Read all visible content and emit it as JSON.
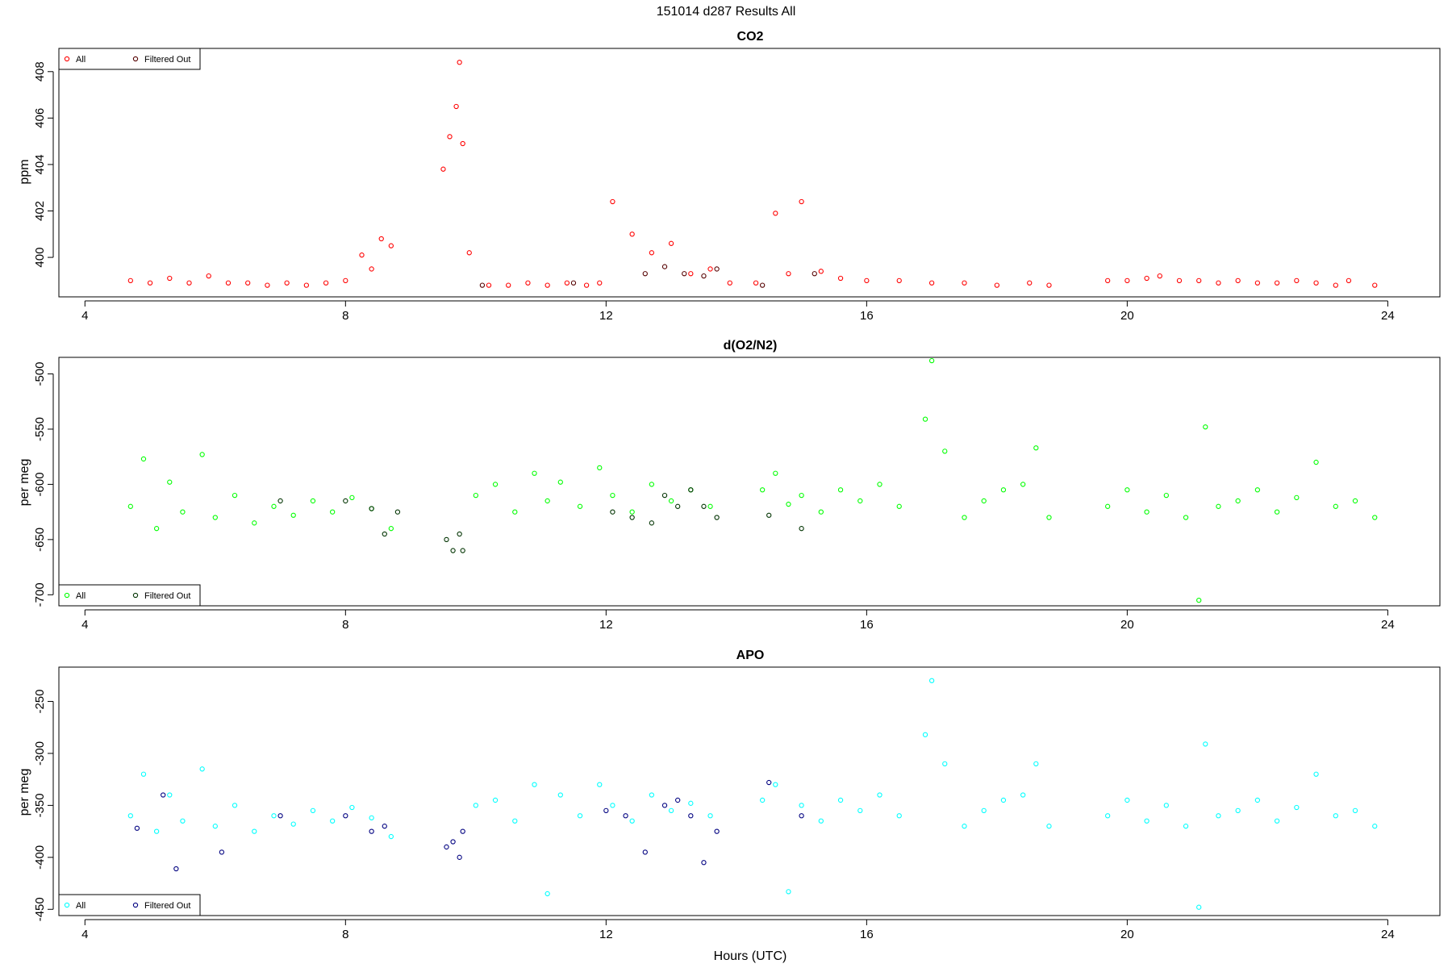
{
  "figure": {
    "title": "151014   d287   Results All",
    "xlabel": "Hours (UTC)"
  },
  "chart_data": [
    {
      "type": "scatter",
      "title": "CO2",
      "ylabel": "ppm",
      "xlim": [
        3.6,
        24.8
      ],
      "ylim": [
        398.3,
        409.0
      ],
      "xticks": [
        4,
        8,
        12,
        16,
        20,
        24
      ],
      "yticks": [
        400,
        402,
        404,
        406,
        408
      ],
      "legend_position": "top-left",
      "grid": false,
      "colors": {
        "all": "#ff0000",
        "filtered": "#550000"
      },
      "series": [
        {
          "name": "All",
          "x": [
            4.7,
            5.0,
            5.3,
            5.6,
            5.9,
            6.2,
            6.5,
            6.8,
            7.1,
            7.4,
            7.7,
            8.0,
            8.25,
            8.4,
            8.55,
            8.7,
            9.5,
            9.6,
            9.7,
            9.75,
            9.8,
            9.9,
            10.2,
            10.5,
            10.8,
            11.1,
            11.4,
            11.7,
            11.9,
            12.1,
            12.4,
            12.7,
            13.0,
            13.3,
            13.6,
            13.9,
            14.3,
            14.6,
            14.8,
            15.0,
            15.3,
            15.6,
            16.0,
            16.5,
            17.0,
            17.5,
            18.0,
            18.5,
            18.8,
            19.7,
            20.0,
            20.3,
            20.5,
            20.8,
            21.1,
            21.4,
            21.7,
            22.0,
            22.3,
            22.6,
            22.9,
            23.2,
            23.4,
            23.8
          ],
          "y": [
            399.0,
            398.9,
            399.1,
            398.9,
            399.2,
            398.9,
            398.9,
            398.8,
            398.9,
            398.8,
            398.9,
            399.0,
            400.1,
            399.5,
            400.8,
            400.5,
            403.8,
            405.2,
            406.5,
            408.4,
            404.9,
            400.2,
            398.8,
            398.8,
            398.9,
            398.8,
            398.9,
            398.8,
            398.9,
            402.4,
            401.0,
            400.2,
            400.6,
            399.3,
            399.5,
            398.9,
            398.9,
            401.9,
            399.3,
            402.4,
            399.4,
            399.1,
            399.0,
            399.0,
            398.9,
            398.9,
            398.8,
            398.9,
            398.8,
            399.0,
            399.0,
            399.1,
            399.2,
            399.0,
            399.0,
            398.9,
            399.0,
            398.9,
            398.9,
            399.0,
            398.9,
            398.8,
            399.0,
            398.8
          ]
        },
        {
          "name": "Filtered Out",
          "x": [
            10.1,
            11.5,
            12.6,
            12.9,
            13.2,
            13.5,
            13.7,
            14.4,
            15.2
          ],
          "y": [
            398.8,
            398.9,
            399.3,
            399.6,
            399.3,
            399.2,
            399.5,
            398.8,
            399.3
          ]
        }
      ]
    },
    {
      "type": "scatter",
      "title": "d(O2/N2)",
      "ylabel": "per meg",
      "xlim": [
        3.6,
        24.8
      ],
      "ylim": [
        -710,
        -485
      ],
      "xticks": [
        4,
        8,
        12,
        16,
        20,
        24
      ],
      "yticks": [
        -700,
        -650,
        -600,
        -550,
        -500
      ],
      "legend_position": "bottom-left",
      "grid": false,
      "colors": {
        "all": "#00ff00",
        "filtered": "#003300"
      },
      "series": [
        {
          "name": "All",
          "x": [
            4.7,
            4.9,
            5.1,
            5.3,
            5.5,
            5.8,
            6.0,
            6.3,
            6.6,
            6.9,
            7.2,
            7.5,
            7.8,
            8.1,
            8.4,
            8.7,
            10.0,
            10.3,
            10.6,
            10.9,
            11.1,
            11.3,
            11.6,
            11.9,
            12.1,
            12.4,
            12.7,
            13.0,
            13.3,
            13.6,
            14.4,
            14.6,
            14.8,
            15.0,
            15.3,
            15.6,
            15.9,
            16.2,
            16.5,
            16.9,
            17.0,
            17.2,
            17.5,
            17.8,
            18.1,
            18.4,
            18.6,
            18.8,
            19.7,
            20.0,
            20.3,
            20.6,
            20.9,
            21.1,
            21.2,
            21.4,
            21.7,
            22.0,
            22.3,
            22.6,
            22.9,
            23.2,
            23.5,
            23.8
          ],
          "y": [
            -620,
            -577,
            -640,
            -598,
            -625,
            -573,
            -630,
            -610,
            -635,
            -620,
            -628,
            -615,
            -625,
            -612,
            -622,
            -640,
            -610,
            -600,
            -625,
            -590,
            -615,
            -598,
            -620,
            -585,
            -610,
            -625,
            -600,
            -615,
            -605,
            -620,
            -605,
            -590,
            -618,
            -610,
            -625,
            -605,
            -615,
            -600,
            -620,
            -541,
            -488,
            -570,
            -630,
            -615,
            -605,
            -600,
            -567,
            -630,
            -620,
            -605,
            -625,
            -610,
            -630,
            -705,
            -548,
            -620,
            -615,
            -605,
            -625,
            -612,
            -580,
            -620,
            -615,
            -630
          ]
        },
        {
          "name": "Filtered Out",
          "x": [
            7.0,
            8.0,
            8.4,
            8.6,
            8.8,
            9.55,
            9.65,
            9.75,
            9.8,
            12.1,
            12.4,
            12.7,
            12.9,
            13.1,
            13.3,
            13.5,
            13.7,
            14.5,
            15.0
          ],
          "y": [
            -615,
            -615,
            -622,
            -645,
            -625,
            -650,
            -660,
            -645,
            -660,
            -625,
            -630,
            -635,
            -610,
            -620,
            -605,
            -620,
            -630,
            -628,
            -640
          ]
        }
      ]
    },
    {
      "type": "scatter",
      "title": "APO",
      "ylabel": "per meg",
      "xlim": [
        3.6,
        24.8
      ],
      "ylim": [
        -456,
        -217
      ],
      "xticks": [
        4,
        8,
        12,
        16,
        20,
        24
      ],
      "yticks": [
        -450,
        -400,
        -350,
        -300,
        -250
      ],
      "legend_position": "bottom-left",
      "grid": false,
      "colors": {
        "all": "#00ffff",
        "filtered": "#000080"
      },
      "series": [
        {
          "name": "All",
          "x": [
            4.7,
            4.9,
            5.1,
            5.3,
            5.5,
            5.8,
            6.0,
            6.3,
            6.6,
            6.9,
            7.2,
            7.5,
            7.8,
            8.1,
            8.4,
            8.7,
            10.0,
            10.3,
            10.6,
            10.9,
            11.1,
            11.3,
            11.6,
            11.9,
            12.1,
            12.4,
            12.7,
            13.0,
            13.3,
            13.6,
            14.4,
            14.6,
            14.8,
            15.0,
            15.3,
            15.6,
            15.9,
            16.2,
            16.5,
            16.9,
            17.0,
            17.2,
            17.5,
            17.8,
            18.1,
            18.4,
            18.6,
            18.8,
            19.7,
            20.0,
            20.3,
            20.6,
            20.9,
            21.1,
            21.2,
            21.4,
            21.7,
            22.0,
            22.3,
            22.6,
            22.9,
            23.2,
            23.5,
            23.8
          ],
          "y": [
            -360,
            -320,
            -375,
            -340,
            -365,
            -315,
            -370,
            -350,
            -375,
            -360,
            -368,
            -355,
            -365,
            -352,
            -362,
            -380,
            -350,
            -345,
            -365,
            -330,
            -435,
            -340,
            -360,
            -330,
            -350,
            -365,
            -340,
            -355,
            -348,
            -360,
            -345,
            -330,
            -433,
            -350,
            -365,
            -345,
            -355,
            -340,
            -360,
            -282,
            -230,
            -310,
            -370,
            -355,
            -345,
            -340,
            -310,
            -370,
            -360,
            -345,
            -365,
            -350,
            -370,
            -448,
            -291,
            -360,
            -355,
            -345,
            -365,
            -352,
            -320,
            -360,
            -355,
            -370
          ]
        },
        {
          "name": "Filtered Out",
          "x": [
            4.8,
            5.2,
            5.4,
            6.1,
            7.0,
            8.0,
            8.4,
            8.6,
            9.55,
            9.65,
            9.75,
            9.8,
            12.0,
            12.3,
            12.6,
            12.9,
            13.1,
            13.3,
            13.5,
            13.7,
            14.5,
            15.0
          ],
          "y": [
            -372,
            -340,
            -411,
            -395,
            -360,
            -360,
            -375,
            -370,
            -390,
            -385,
            -400,
            -375,
            -355,
            -360,
            -395,
            -350,
            -345,
            -360,
            -405,
            -375,
            -328,
            -360
          ]
        }
      ]
    }
  ]
}
